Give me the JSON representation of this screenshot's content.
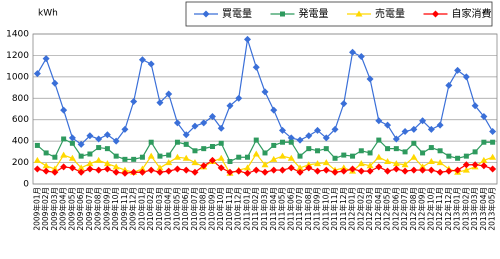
{
  "chart_data": {
    "type": "line",
    "y_label": "kWh",
    "categories": [
      "2009年01月",
      "2009年02月",
      "2009年03月",
      "2009年04月",
      "2009年05月",
      "2009年06月",
      "2009年07月",
      "2009年08月",
      "2009年09月",
      "2009年10月",
      "2009年11月",
      "2009年12月",
      "2010年01月",
      "2010年02月",
      "2010年03月",
      "2010年04月",
      "2010年05月",
      "2010年06月",
      "2010年07月",
      "2010年08月",
      "2010年09月",
      "2010年10月",
      "2010年11月",
      "2010年12月",
      "2011年01月",
      "2011年02月",
      "2011年03月",
      "2011年04月",
      "2011年05月",
      "2011年06月",
      "2011年07月",
      "2011年08月",
      "2011年09月",
      "2011年10月",
      "2011年11月",
      "2011年12月",
      "2012年01月",
      "2012年02月",
      "2012年03月",
      "2012年04月",
      "2012年05月",
      "2012年06月",
      "2012年07月",
      "2012年08月",
      "2012年09月",
      "2012年10月",
      "2012年11月",
      "2012年12月",
      "2013年01月",
      "2013年02月",
      "2013年03月",
      "2013年04月",
      "2013年05月"
    ],
    "series": [
      {
        "name": "買電量",
        "color": "#3a6fd8",
        "marker": "diamond",
        "values": [
          1030,
          1170,
          940,
          690,
          430,
          370,
          450,
          420,
          460,
          400,
          510,
          770,
          1160,
          1120,
          760,
          840,
          570,
          460,
          540,
          570,
          630,
          520,
          730,
          800,
          1350,
          1090,
          860,
          690,
          500,
          430,
          410,
          450,
          500,
          430,
          510,
          750,
          1230,
          1190,
          980,
          590,
          550,
          420,
          490,
          510,
          590,
          510,
          550,
          920,
          1060,
          1000,
          730,
          630,
          490
        ]
      },
      {
        "name": "発電量",
        "color": "#2e9a5e",
        "marker": "square",
        "values": [
          360,
          290,
          250,
          420,
          380,
          260,
          280,
          340,
          330,
          260,
          230,
          230,
          250,
          390,
          260,
          270,
          390,
          370,
          310,
          330,
          350,
          380,
          210,
          250,
          250,
          410,
          290,
          360,
          390,
          390,
          260,
          330,
          310,
          330,
          240,
          270,
          260,
          310,
          290,
          410,
          330,
          330,
          300,
          380,
          290,
          340,
          310,
          260,
          240,
          260,
          300,
          390,
          390
        ]
      },
      {
        "name": "売電量",
        "color": "#ffd800",
        "marker": "triangle",
        "values": [
          220,
          170,
          140,
          270,
          240,
          150,
          190,
          220,
          190,
          160,
          130,
          110,
          140,
          260,
          150,
          200,
          250,
          240,
          200,
          160,
          210,
          240,
          100,
          130,
          150,
          280,
          180,
          230,
          260,
          240,
          150,
          180,
          190,
          200,
          130,
          150,
          120,
          190,
          170,
          250,
          210,
          190,
          180,
          250,
          160,
          210,
          200,
          140,
          110,
          130,
          160,
          220,
          250
        ]
      },
      {
        "name": "自家消費",
        "color": "#ff0000",
        "marker": "diamond",
        "values": [
          140,
          120,
          110,
          160,
          150,
          110,
          140,
          130,
          140,
          110,
          100,
          110,
          110,
          130,
          110,
          120,
          140,
          130,
          110,
          170,
          220,
          150,
          110,
          120,
          100,
          130,
          110,
          130,
          130,
          150,
          110,
          150,
          120,
          130,
          110,
          120,
          140,
          120,
          120,
          160,
          120,
          140,
          120,
          130,
          130,
          130,
          110,
          120,
          130,
          180,
          180,
          170,
          140
        ]
      }
    ],
    "ylim": [
      0,
      1400
    ],
    "yticks": [
      0,
      200,
      400,
      600,
      800,
      1000,
      1200,
      1400
    ],
    "grid": true,
    "legend": "top-right"
  }
}
